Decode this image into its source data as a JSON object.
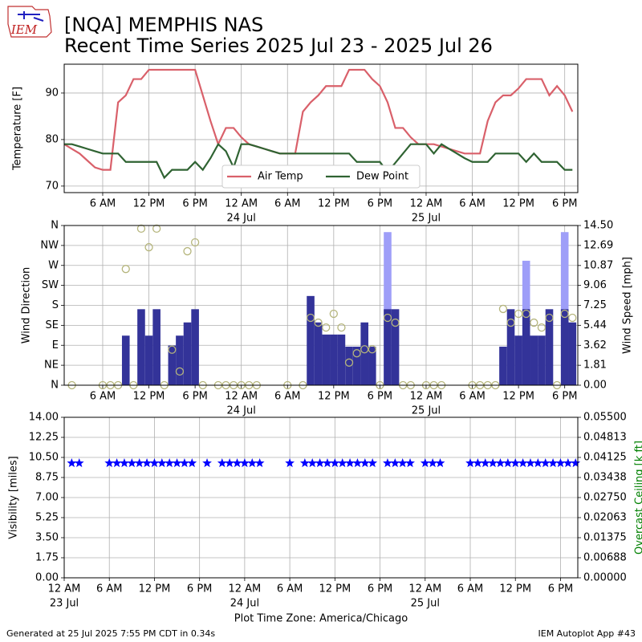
{
  "logo_text": "IEM",
  "title": "[NQA] MEMPHIS NAS",
  "subtitle": "Recent Time Series 2025 Jul 23 - 2025 Jul 26",
  "footer_left": "Generated at 25 Jul 2025 7:55 PM CDT in 0.34s",
  "footer_right": "IEM Autoplot App #43",
  "chart_data": [
    {
      "type": "line",
      "ylabel": "Temperature [F]",
      "grid": true,
      "legend": "lower center",
      "xlim": [
        1,
        67.7
      ],
      "ylim": [
        68.6,
        96.2
      ],
      "yticks": [
        70,
        80,
        90
      ],
      "xticks": [
        {
          "value": 6,
          "label": "6 AM"
        },
        {
          "value": 12,
          "label": "12 PM"
        },
        {
          "value": 18,
          "label": "6 PM"
        },
        {
          "value": 24,
          "label": "12 AM",
          "sublabel": "24 Jul"
        },
        {
          "value": 30,
          "label": "6 AM"
        },
        {
          "value": 36,
          "label": "12 PM"
        },
        {
          "value": 42,
          "label": "6 PM"
        },
        {
          "value": 48,
          "label": "12 AM",
          "sublabel": "25 Jul"
        },
        {
          "value": 54,
          "label": "6 AM"
        },
        {
          "value": 60,
          "label": "12 PM"
        },
        {
          "value": 66,
          "label": "6 PM"
        }
      ],
      "x": [
        1,
        2,
        3,
        4,
        5,
        6,
        7,
        8,
        9,
        10,
        11,
        12,
        13,
        14,
        15,
        16,
        17,
        18,
        19,
        20,
        21,
        22,
        23,
        24,
        25,
        26,
        27,
        28,
        29,
        30,
        31,
        32,
        33,
        34,
        35,
        36,
        37,
        38,
        39,
        40,
        41,
        42,
        43,
        44,
        45,
        46,
        47,
        48,
        49,
        50,
        51,
        52,
        53,
        54,
        55,
        56,
        57,
        58,
        59,
        60,
        61,
        62,
        63,
        64,
        65,
        66,
        67
      ],
      "series": [
        {
          "name": "Air Temp",
          "color": "#d9606a",
          "mark": "line",
          "values": [
            79,
            78,
            77,
            75.5,
            74,
            73.5,
            73.5,
            88,
            89.5,
            93,
            93,
            95,
            95,
            95,
            95,
            95,
            95,
            95,
            89.5,
            84,
            79,
            82.5,
            82.5,
            80.5,
            79,
            78.5,
            78,
            77.5,
            77,
            77,
            77,
            86,
            88,
            89.5,
            91.5,
            91.5,
            91.5,
            95,
            95,
            95,
            93,
            91.5,
            88,
            82.5,
            82.5,
            80.5,
            79,
            79,
            79,
            78.5,
            78,
            77.5,
            77,
            77,
            77,
            84,
            88,
            89.5,
            89.5,
            91,
            93,
            93,
            93,
            89.5,
            91.5,
            89.5,
            86
          ]
        },
        {
          "name": "Dew Point",
          "color": "#2f6332",
          "mark": "line",
          "values": [
            79,
            79,
            78.5,
            78,
            77.5,
            77,
            77,
            77,
            75.2,
            75.2,
            75.2,
            75.2,
            75.2,
            71.8,
            73.5,
            73.5,
            73.5,
            75.2,
            73.5,
            76,
            79,
            77.5,
            74,
            79,
            79,
            78.5,
            78,
            77.5,
            77,
            77,
            77,
            77,
            77,
            77,
            77,
            77,
            77,
            77,
            75.2,
            75.2,
            75.2,
            75.2,
            73,
            75,
            77,
            79,
            79,
            79,
            77,
            79,
            78,
            77,
            76,
            75.2,
            75.2,
            75.2,
            77,
            77,
            77,
            77,
            75.2,
            77,
            75.2,
            75.2,
            75.2,
            73.5,
            73.5
          ]
        }
      ]
    },
    {
      "type": "bar",
      "ylabel": "Wind Direction",
      "y2label": "Wind Speed [mph]",
      "grid": true,
      "xlim": [
        1,
        67.7
      ],
      "ylim": [
        0,
        360
      ],
      "y2lim": [
        0,
        14.5
      ],
      "yticks": [
        {
          "value": 0,
          "label": "N"
        },
        {
          "value": 45,
          "label": "NE"
        },
        {
          "value": 90,
          "label": "E"
        },
        {
          "value": 135,
          "label": "SE"
        },
        {
          "value": 180,
          "label": "S"
        },
        {
          "value": 225,
          "label": "SW"
        },
        {
          "value": 270,
          "label": "W"
        },
        {
          "value": 315,
          "label": "NW"
        },
        {
          "value": 360,
          "label": "N"
        }
      ],
      "y2ticks": [
        {
          "value": 0,
          "label": "0.00"
        },
        {
          "value": 1.81,
          "label": "1.81"
        },
        {
          "value": 3.62,
          "label": "3.62"
        },
        {
          "value": 5.44,
          "label": "5.44"
        },
        {
          "value": 7.25,
          "label": "7.25"
        },
        {
          "value": 9.06,
          "label": "9.06"
        },
        {
          "value": 10.87,
          "label": "10.87"
        },
        {
          "value": 12.69,
          "label": "12.69"
        },
        {
          "value": 14.5,
          "label": "14.50"
        }
      ],
      "xticks": [
        {
          "value": 6,
          "label": "6 AM"
        },
        {
          "value": 12,
          "label": "12 PM"
        },
        {
          "value": 18,
          "label": "6 PM"
        },
        {
          "value": 24,
          "label": "12 AM",
          "sublabel": "24 Jul"
        },
        {
          "value": 30,
          "label": "6 AM"
        },
        {
          "value": 36,
          "label": "12 PM"
        },
        {
          "value": 42,
          "label": "6 PM"
        },
        {
          "value": 48,
          "label": "12 AM",
          "sublabel": "25 Jul"
        },
        {
          "value": 54,
          "label": "6 AM"
        },
        {
          "value": 60,
          "label": "12 PM"
        },
        {
          "value": 66,
          "label": "6 PM"
        }
      ],
      "x": [
        1,
        2,
        3,
        4,
        5,
        6,
        7,
        8,
        9,
        10,
        11,
        12,
        13,
        14,
        15,
        16,
        17,
        18,
        19,
        20,
        21,
        22,
        23,
        24,
        25,
        26,
        27,
        28,
        29,
        30,
        31,
        32,
        33,
        34,
        35,
        36,
        37,
        38,
        39,
        40,
        41,
        42,
        43,
        44,
        45,
        46,
        47,
        48,
        49,
        50,
        51,
        52,
        53,
        54,
        55,
        56,
        57,
        58,
        59,
        60,
        61,
        62,
        63,
        64,
        65,
        66,
        67
      ],
      "series": [
        {
          "color": "#9e9ef8",
          "mark": "bar",
          "axis": "y2",
          "values": [
            null,
            null,
            null,
            null,
            null,
            null,
            null,
            null,
            null,
            null,
            null,
            null,
            null,
            null,
            null,
            null,
            null,
            null,
            null,
            null,
            null,
            null,
            null,
            null,
            null,
            null,
            null,
            null,
            null,
            null,
            null,
            null,
            null,
            null,
            null,
            null,
            null,
            null,
            null,
            null,
            null,
            null,
            13.9,
            null,
            null,
            null,
            null,
            null,
            null,
            null,
            null,
            null,
            null,
            null,
            null,
            null,
            null,
            null,
            null,
            null,
            11.3,
            null,
            null,
            null,
            null,
            13.9,
            null
          ]
        },
        {
          "color": "#333399",
          "mark": "bar",
          "axis": "y2",
          "values": [
            null,
            0,
            null,
            null,
            null,
            0,
            0,
            0,
            4.5,
            0,
            6.9,
            4.5,
            6.9,
            0,
            3.6,
            4.5,
            5.7,
            6.9,
            0,
            null,
            0,
            0,
            0,
            0,
            0,
            0,
            null,
            null,
            null,
            0,
            null,
            0,
            8.1,
            5.7,
            4.6,
            4.6,
            4.6,
            3.5,
            3.5,
            5.7,
            3.5,
            0,
            6.9,
            6.9,
            0,
            0,
            null,
            0,
            0,
            0,
            null,
            null,
            null,
            0,
            0,
            0,
            0,
            3.5,
            6.9,
            4.5,
            6.9,
            4.5,
            4.5,
            6.9,
            0,
            6.9,
            5.7
          ]
        },
        {
          "color": "#b5b57c",
          "mark": "circle",
          "values": [
            null,
            0,
            null,
            null,
            null,
            0,
            0,
            0,
            262,
            0,
            353,
            311,
            353,
            0,
            80,
            31,
            302,
            322,
            0,
            null,
            0,
            0,
            0,
            0,
            0,
            0,
            null,
            null,
            null,
            0,
            null,
            0,
            152,
            141,
            130,
            161,
            130,
            51,
            72,
            81,
            81,
            0,
            152,
            141,
            0,
            0,
            null,
            0,
            0,
            0,
            null,
            null,
            null,
            0,
            0,
            0,
            0,
            172,
            141,
            161,
            161,
            141,
            130,
            152,
            0,
            161,
            152
          ]
        }
      ]
    },
    {
      "type": "scatter",
      "ylabel": "Visibility [miles]",
      "y2label": "Overcast Ceiling [k ft]",
      "y2label_color": "#008000",
      "grid": true,
      "xlabel": "Plot Time Zone: America/Chicago",
      "xlim": [
        0,
        68.3
      ],
      "ylim": [
        0,
        14
      ],
      "y2lim": [
        0,
        0.055
      ],
      "yticks": [
        {
          "value": 0,
          "label": "0.00"
        },
        {
          "value": 1.75,
          "label": "1.75"
        },
        {
          "value": 3.5,
          "label": "3.50"
        },
        {
          "value": 5.25,
          "label": "5.25"
        },
        {
          "value": 7,
          "label": "7.00"
        },
        {
          "value": 8.75,
          "label": "8.75"
        },
        {
          "value": 10.5,
          "label": "10.50"
        },
        {
          "value": 12.25,
          "label": "12.25"
        },
        {
          "value": 14,
          "label": "14.00"
        }
      ],
      "y2ticks": [
        {
          "value": 0,
          "label": "0.00000"
        },
        {
          "value": 0.006875,
          "label": "0.00688"
        },
        {
          "value": 0.01375,
          "label": "0.01375"
        },
        {
          "value": 0.020625,
          "label": "0.02063"
        },
        {
          "value": 0.0275,
          "label": "0.02750"
        },
        {
          "value": 0.034375,
          "label": "0.03438"
        },
        {
          "value": 0.04125,
          "label": "0.04125"
        },
        {
          "value": 0.048125,
          "label": "0.04813"
        },
        {
          "value": 0.055,
          "label": "0.05500"
        }
      ],
      "xticks": [
        {
          "value": 0,
          "label": "12 AM",
          "sublabel": "23 Jul"
        },
        {
          "value": 6,
          "label": "6 AM"
        },
        {
          "value": 12,
          "label": "12 PM"
        },
        {
          "value": 18,
          "label": "6 PM"
        },
        {
          "value": 24,
          "label": "12 AM",
          "sublabel": "24 Jul"
        },
        {
          "value": 30,
          "label": "6 AM"
        },
        {
          "value": 36,
          "label": "12 PM"
        },
        {
          "value": 42,
          "label": "6 PM"
        },
        {
          "value": 48,
          "label": "12 AM",
          "sublabel": "25 Jul"
        },
        {
          "value": 54,
          "label": "6 AM"
        },
        {
          "value": 60,
          "label": "12 PM"
        },
        {
          "value": 66,
          "label": "6 PM"
        }
      ],
      "x": [
        1,
        2,
        6,
        7,
        8,
        9,
        10,
        11,
        12,
        13,
        14,
        15,
        16,
        17,
        19,
        21,
        22,
        23,
        24,
        25,
        26,
        30,
        32,
        33,
        34,
        35,
        36,
        37,
        38,
        39,
        40,
        41,
        43,
        44,
        45,
        46,
        48,
        49,
        50,
        54,
        55,
        56,
        57,
        58,
        59,
        60,
        61,
        62,
        63,
        64,
        65,
        66,
        67,
        68
      ],
      "series": [
        {
          "color": "#0000ff",
          "mark": "star",
          "values": [
            10,
            10,
            10,
            10,
            10,
            10,
            10,
            10,
            10,
            10,
            10,
            10,
            10,
            10,
            10,
            10,
            10,
            10,
            10,
            10,
            10,
            10,
            10,
            10,
            10,
            10,
            10,
            10,
            10,
            10,
            10,
            10,
            10,
            10,
            10,
            10,
            10,
            10,
            10,
            10,
            10,
            10,
            10,
            10,
            10,
            10,
            10,
            10,
            10,
            10,
            10,
            10,
            10,
            10
          ]
        }
      ]
    }
  ]
}
